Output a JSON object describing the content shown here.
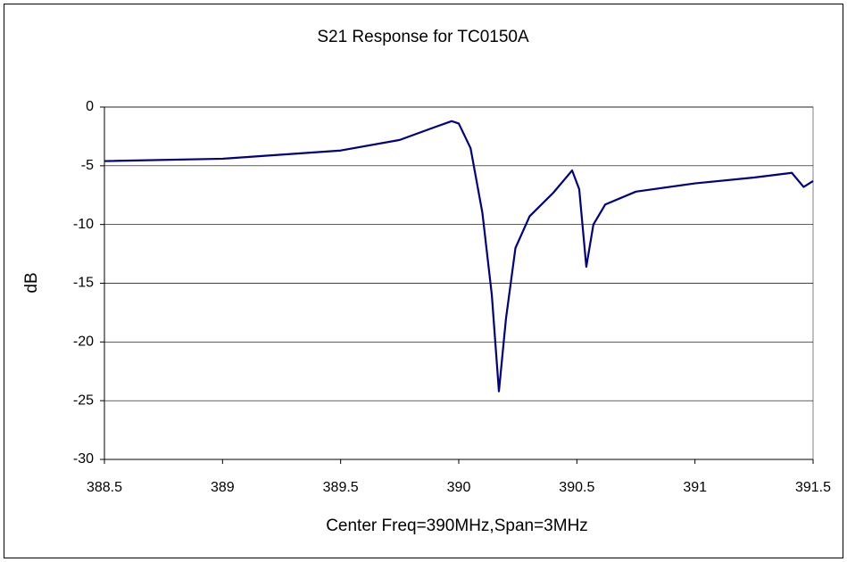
{
  "chart_data": {
    "type": "line",
    "title": "S21 Response for TC0150A",
    "x_label": "Center Freq=390MHz,Span=3MHz",
    "y_label": "dB",
    "x": [
      388.5,
      389.0,
      389.5,
      389.75,
      389.9,
      389.97,
      390.0,
      390.05,
      390.1,
      390.14,
      390.17,
      390.2,
      390.24,
      390.3,
      390.4,
      390.48,
      390.51,
      390.54,
      390.57,
      390.62,
      390.75,
      391.0,
      391.25,
      391.41,
      391.46,
      391.5
    ],
    "series": [
      {
        "name": "S21",
        "color": "#000080",
        "values": [
          -4.6,
          -4.4,
          -3.7,
          -2.8,
          -1.7,
          -1.2,
          -1.4,
          -3.5,
          -9,
          -16,
          -24.2,
          -18,
          -12,
          -9.3,
          -7.3,
          -5.4,
          -7,
          -13.6,
          -10,
          -8.3,
          -7.2,
          -6.5,
          -6.0,
          -5.6,
          -6.8,
          -6.3
        ]
      }
    ],
    "xlim": [
      388.5,
      391.5
    ],
    "xticks": [
      388.5,
      389,
      389.5,
      390,
      390.5,
      391,
      391.5
    ],
    "ylim": [
      -30,
      0
    ],
    "yticks": [
      0,
      -5,
      -10,
      -15,
      -20,
      -25,
      -30
    ],
    "grid": true
  }
}
